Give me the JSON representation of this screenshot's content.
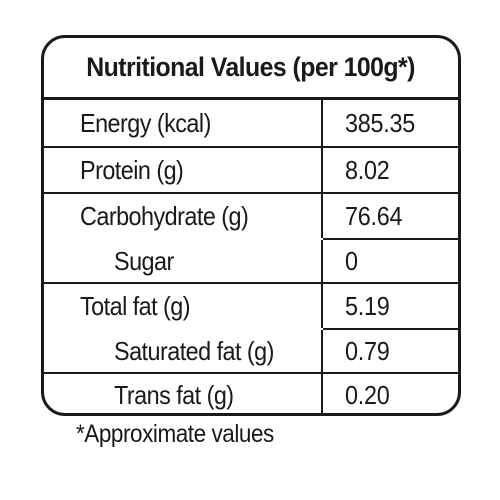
{
  "table": {
    "title": "Nutritional Values (per 100g*)",
    "rows": [
      {
        "name": "Energy (kcal)",
        "value": "385.35"
      },
      {
        "name": "Protein (g)",
        "value": "8.02"
      },
      {
        "name": "Carbohydrate (g)",
        "value": "76.64"
      },
      {
        "name": "Sugar",
        "value": "0"
      },
      {
        "name": "Total fat (g)",
        "value": "5.19"
      },
      {
        "name": "Saturated fat (g)",
        "value": "0.79"
      },
      {
        "name": "Trans fat (g)",
        "value": "0.20"
      }
    ]
  },
  "footnote": "*Approximate values"
}
